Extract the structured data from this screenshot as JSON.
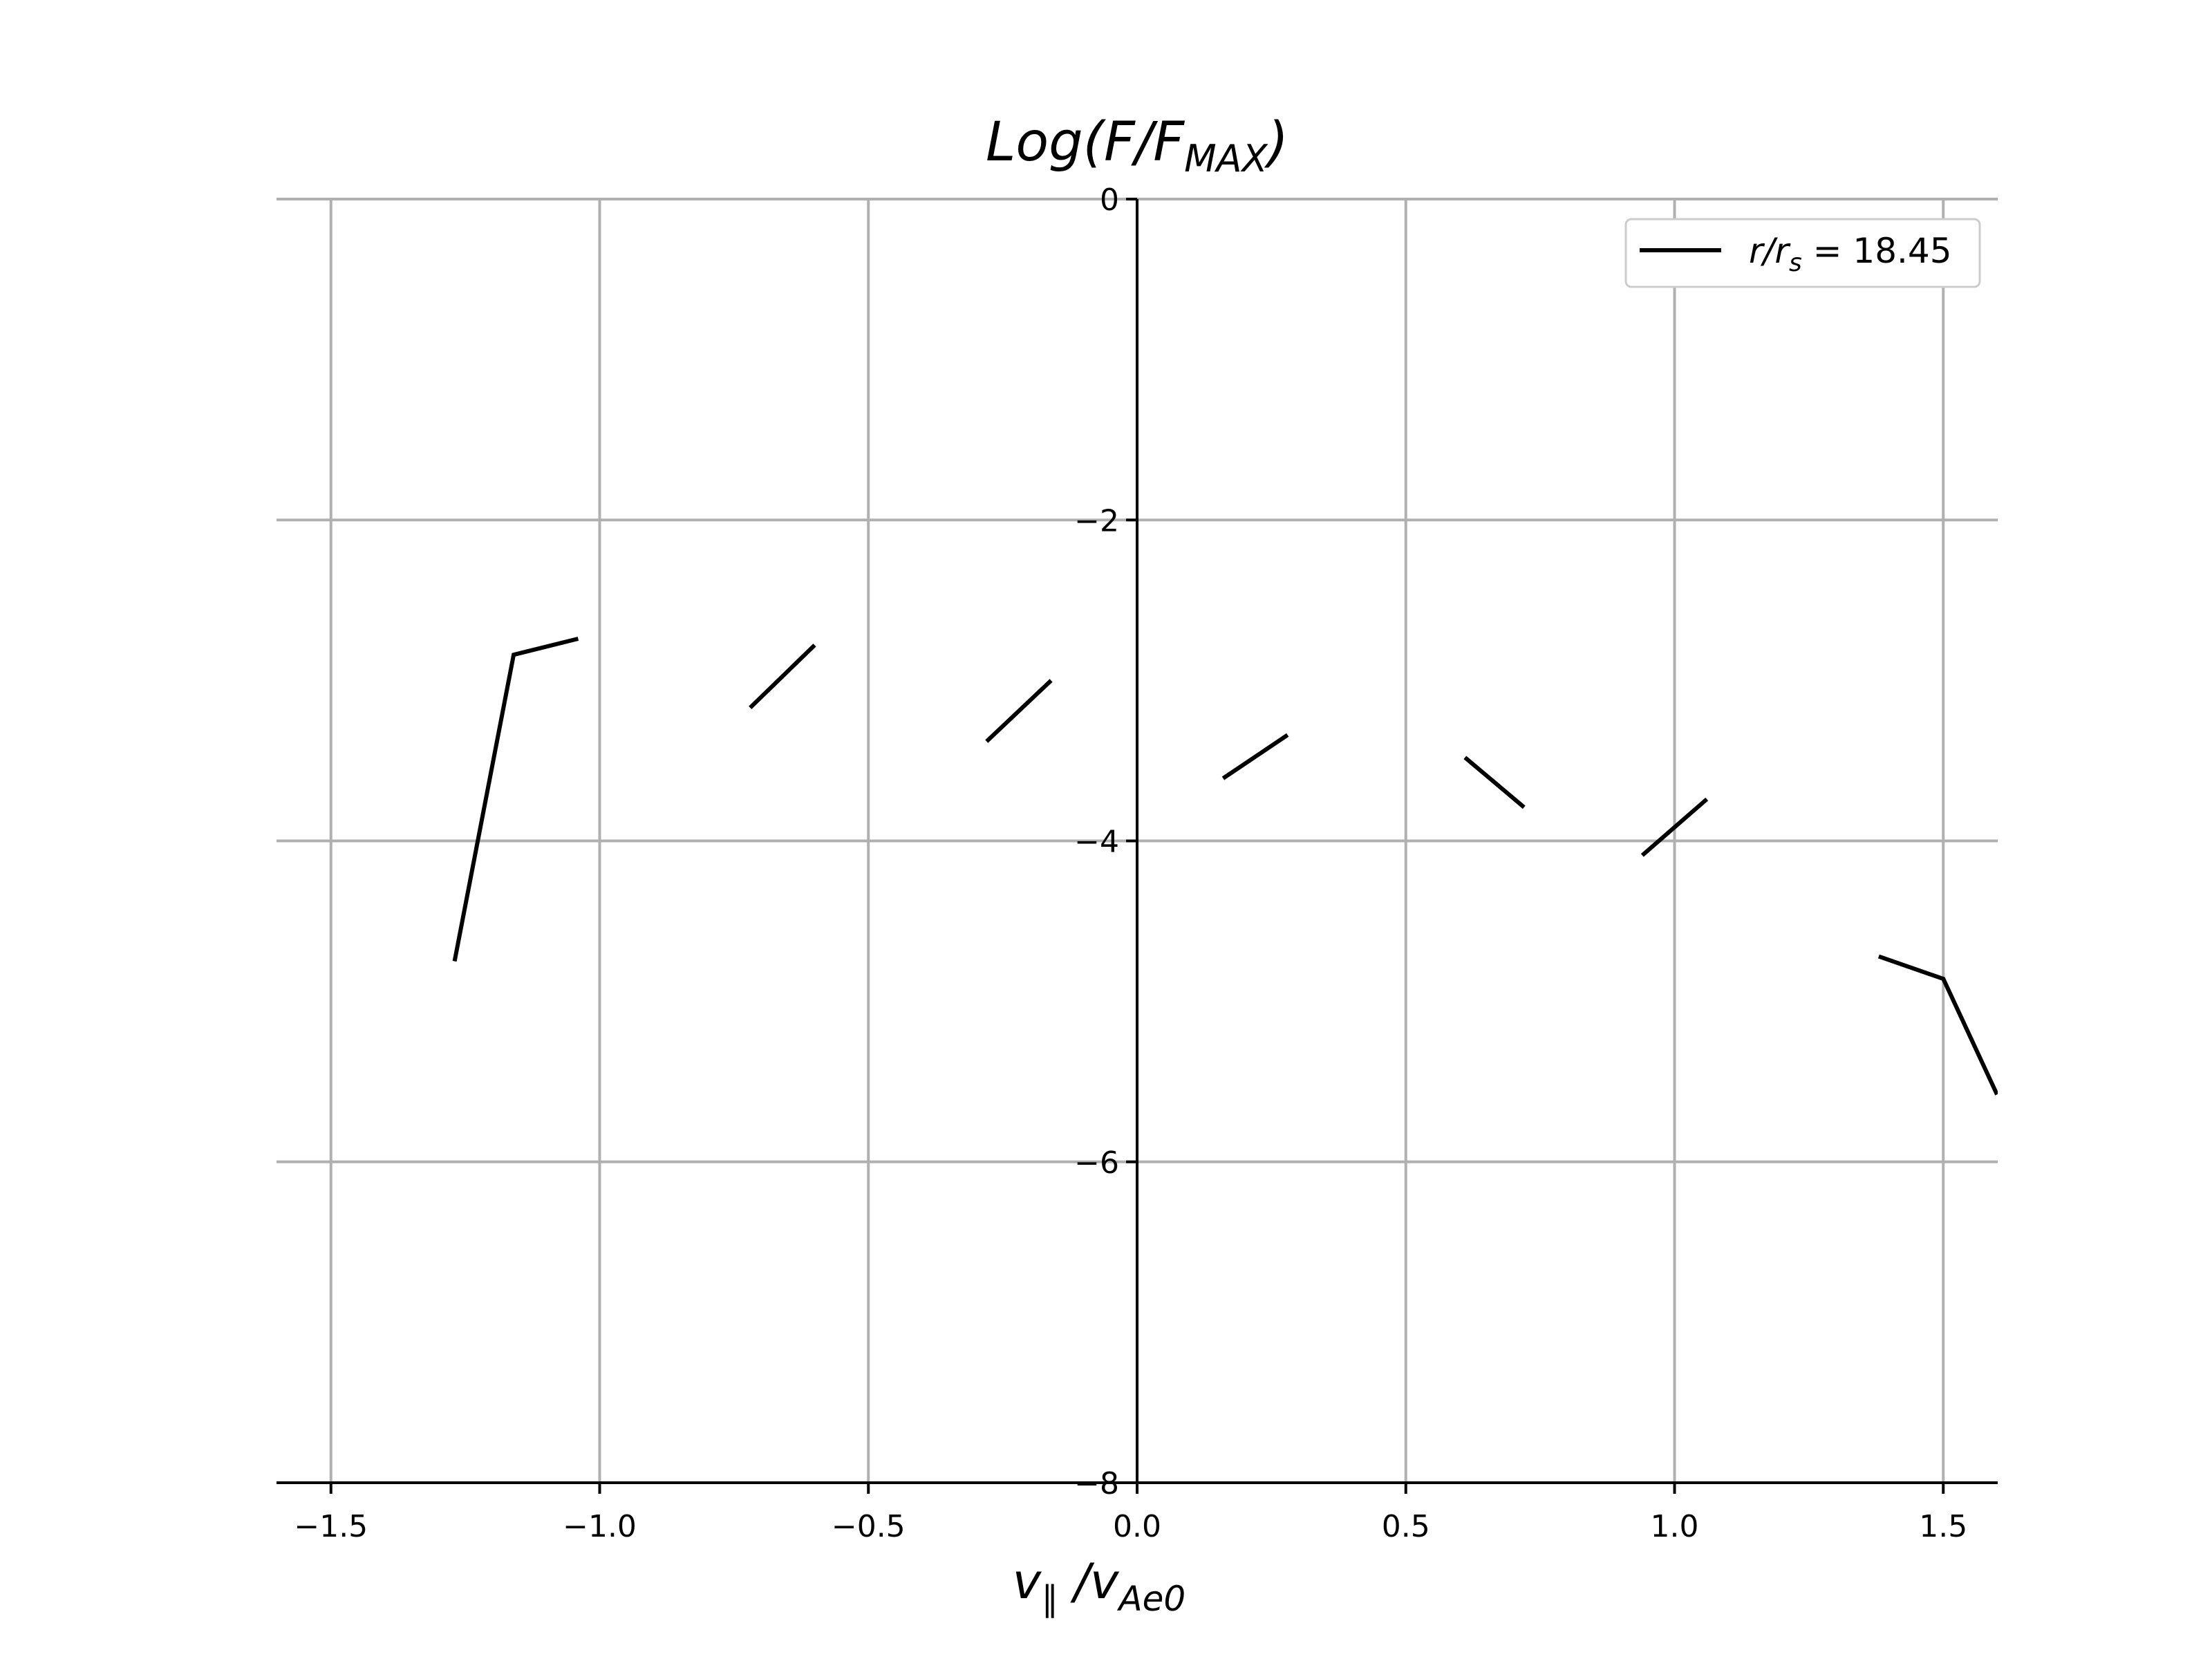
{
  "chart_data": {
    "type": "line",
    "title": {
      "main": "Log(F/F",
      "sub": "MAX",
      "close": ")"
    },
    "xlabel": {
      "main": "v",
      "sub1": "∥",
      "sep": " /v",
      "sub2": "Ae0"
    },
    "ylabel": "",
    "xlim": [
      -1.6,
      1.6
    ],
    "ylim": [
      -8,
      0
    ],
    "x_ticks": [
      -1.5,
      -1.0,
      -0.5,
      0.0,
      0.5,
      1.0,
      1.5
    ],
    "x_tick_labels": [
      "−1.5",
      "−1.0",
      "−0.5",
      "0.0",
      "0.5",
      "1.0",
      "1.5"
    ],
    "y_ticks": [
      0,
      -2,
      -4,
      -6,
      -8
    ],
    "y_tick_labels": [
      "0",
      "−2",
      "−4",
      "−6",
      "−8"
    ],
    "grid": true,
    "legend": {
      "position": "top-right",
      "label": {
        "main": "r/r",
        "sub": "s",
        "rest": " = 18.45"
      }
    },
    "series": [
      {
        "name": "r/r_s = 18.45",
        "color": "#000000",
        "segments": [
          [
            [
              -1.27,
              -4.75
            ],
            [
              -1.16,
              -2.84
            ],
            [
              -1.04,
              -2.74
            ]
          ],
          [
            [
              -0.72,
              -3.17
            ],
            [
              -0.6,
              -2.78
            ]
          ],
          [
            [
              -0.28,
              -3.38
            ],
            [
              -0.16,
              -3.0
            ]
          ],
          [
            [
              0.16,
              -3.61
            ],
            [
              0.28,
              -3.34
            ]
          ],
          [
            [
              0.61,
              -3.48
            ],
            [
              0.72,
              -3.79
            ]
          ],
          [
            [
              0.94,
              -4.09
            ],
            [
              1.06,
              -3.74
            ]
          ],
          [
            [
              1.38,
              -4.72
            ],
            [
              1.5,
              -4.86
            ],
            [
              1.6,
              -5.58
            ]
          ]
        ]
      }
    ]
  }
}
